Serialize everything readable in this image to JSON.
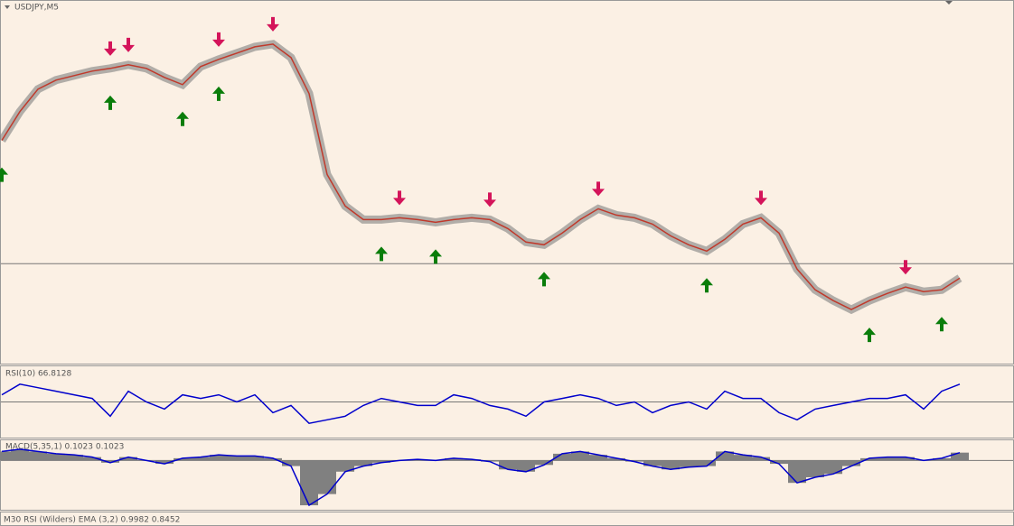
{
  "chart_data": [
    {
      "type": "price",
      "title": "USDJPY,M5",
      "values": [
        248,
        280,
        305,
        315,
        320,
        325,
        328,
        332,
        328,
        318,
        310,
        330,
        338,
        345,
        352,
        355,
        340,
        300,
        210,
        175,
        160,
        160,
        162,
        160,
        157,
        160,
        162,
        160,
        150,
        135,
        132,
        145,
        160,
        172,
        165,
        162,
        155,
        142,
        132,
        125,
        138,
        155,
        162,
        145,
        105,
        82,
        70,
        60,
        70,
        78,
        85,
        80,
        82,
        95
      ],
      "color": "#808080",
      "ylim": [
        0,
        403
      ],
      "hline": 111,
      "buy_signals": [
        0,
        6,
        10,
        12,
        21,
        24,
        30,
        39,
        48,
        52
      ],
      "sell_signals": [
        6,
        7,
        12,
        15,
        22,
        27,
        33,
        42,
        50
      ]
    },
    {
      "type": "line",
      "title": "RSI(10) 66.8128",
      "values": [
        60,
        75,
        70,
        65,
        60,
        55,
        30,
        65,
        50,
        40,
        60,
        55,
        60,
        50,
        60,
        35,
        45,
        20,
        25,
        30,
        45,
        55,
        50,
        45,
        45,
        60,
        55,
        45,
        40,
        30,
        50,
        55,
        60,
        55,
        45,
        50,
        35,
        45,
        50,
        40,
        65,
        55,
        55,
        35,
        25,
        40,
        45,
        50,
        55,
        55,
        60,
        40,
        65,
        75
      ],
      "color": "#0000cc",
      "ylim": [
        0,
        100
      ],
      "hline": 50
    },
    {
      "type": "macd",
      "title": "MACD(5,35,1) 0.1023 0.1023",
      "values": [
        8,
        10,
        8,
        6,
        5,
        3,
        -2,
        3,
        0,
        -3,
        2,
        3,
        5,
        4,
        4,
        2,
        -5,
        -40,
        -30,
        -10,
        -5,
        -2,
        0,
        1,
        0,
        2,
        1,
        -1,
        -8,
        -10,
        -4,
        6,
        8,
        5,
        2,
        -1,
        -5,
        -8,
        -6,
        -5,
        8,
        5,
        3,
        -3,
        -20,
        -15,
        -12,
        -5,
        2,
        3,
        3,
        0,
        2,
        7
      ],
      "color": "#0000cc",
      "fill": "#808080",
      "ylim": [
        -44,
        18
      ],
      "hline": 0
    }
  ],
  "footer": "M30 RSI (Wilders) EMA (3,2) 0.9982 0.8452"
}
